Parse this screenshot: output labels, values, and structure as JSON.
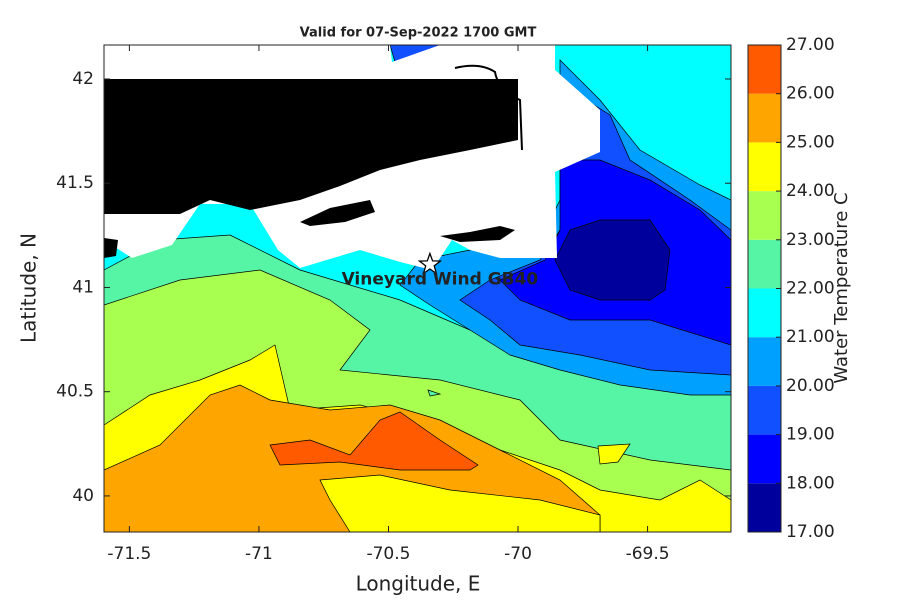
{
  "chart_data": {
    "type": "contour",
    "title": "Valid for 07-Sep-2022 1700 GMT",
    "x_label": "Longitude, E",
    "y_label": "Latitude, N",
    "xlim": [
      -71.598,
      -69.178
    ],
    "ylim": [
      39.827,
      42.163
    ],
    "xticks": [
      -71.5,
      -71,
      -70.5,
      -70,
      -69.5
    ],
    "yticks": [
      40,
      40.5,
      41,
      41.5,
      42
    ],
    "site": {
      "label": "Vineyard Wind GB40",
      "lon": -70.34,
      "lat": 41.11
    },
    "colorbar": {
      "label": "Water Temperature C",
      "ticks": [
        {
          "value": 17,
          "label": "17.00"
        },
        {
          "value": 18,
          "label": "18.00"
        },
        {
          "value": 19,
          "label": "19.00"
        },
        {
          "value": 20,
          "label": "20.00"
        },
        {
          "value": 21,
          "label": "21.00"
        },
        {
          "value": 22,
          "label": "22.00"
        },
        {
          "value": 23,
          "label": "23.00"
        },
        {
          "value": 24,
          "label": "24.00"
        },
        {
          "value": 25,
          "label": "25.00"
        },
        {
          "value": 26,
          "label": "26.00"
        },
        {
          "value": 27,
          "label": "27.00"
        }
      ],
      "colors": [
        "#00009c",
        "#0000ff",
        "#1050ff",
        "#00a0ff",
        "#00ffff",
        "#55f5a5",
        "#a8ff50",
        "#ffff00",
        "#ffa500",
        "#ff5a00"
      ]
    }
  }
}
